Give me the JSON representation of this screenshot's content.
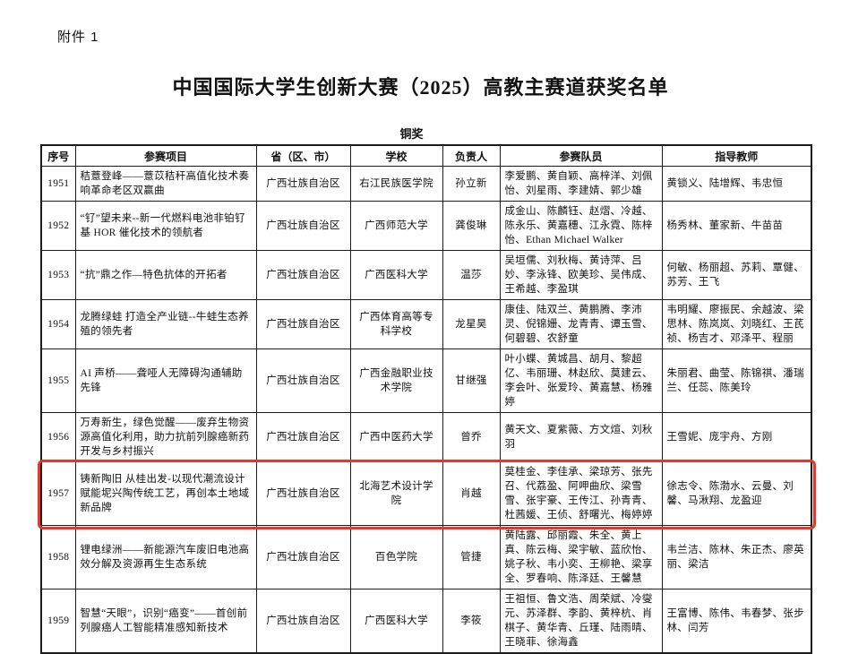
{
  "page": {
    "attachment_label": "附件 1",
    "title": "中国国际大学生创新大赛（2025）高教主赛道获奖名单",
    "award_tier": "铜奖"
  },
  "table": {
    "headers": [
      "序号",
      "参赛项目",
      "省（区、市）",
      "学校",
      "负责人",
      "参赛队员",
      "指导教师"
    ],
    "highlight_color": "#e8372a",
    "rows": [
      {
        "no": "1951",
        "project": "秸薏登峰——薏苡秸秆高值化技术奏响革命老区双赢曲",
        "province": "广西壮族自治区",
        "school": "右江民族医学院",
        "leader": "孙立新",
        "members": "李爱鹏、黄自颖、高梓洋、刘佩怡、刘星雨、李建婧、郭少雄",
        "teachers": "黄锁义、陆增辉、韦忠恒",
        "highlighted": false
      },
      {
        "no": "1952",
        "project": "“钌”望未来--新一代燃料电池非铂钌基 HOR 催化技术的领航者",
        "province": "广西壮族自治区",
        "school": "广西师范大学",
        "leader": "龚俊琳",
        "members": "成金山、陈麟钰、赵熠、冷越、陈永乐、黄嘉穗、江永霓、陈梓怡、Ethan Michael Walker",
        "teachers": "杨秀林、董家新、牛苗苗",
        "highlighted": false
      },
      {
        "no": "1953",
        "project": "“抗”鼎之作—特色抗体的开拓者",
        "province": "广西壮族自治区",
        "school": "广西医科大学",
        "leader": "温莎",
        "members": "吴垣儒、刘秋梅、黄诗萍、吕妙、李泳锋、欧美珍、吴伟成、王希越、李盈琪",
        "teachers": "何敏、杨丽超、苏莉、覃健、苏芳、王飞",
        "highlighted": false
      },
      {
        "no": "1954",
        "project": "龙腾绿蛙 打造全产业链--牛蛙生态养殖的领先者",
        "province": "广西壮族自治区",
        "school": "广西体育高等专科学校",
        "leader": "龙星昊",
        "members": "康佳、陆双兰、黄鹏腾、李沛灵、倪锦姗、龙青青、谭玉雪、何碧碧、农舒童",
        "teachers": "韦明耀、廖振民、余越波、梁思林、陈岚岚、刘晓红、王芪祯、杨吉才、邓泽平、程丽",
        "highlighted": false
      },
      {
        "no": "1955",
        "project": "AI 声桥——聋哑人无障碍沟通辅助先锋",
        "province": "广西壮族自治区",
        "school": "广西金融职业技术学院",
        "leader": "甘继强",
        "members": "叶小蝶、黄城昌、胡月、黎超亿、韦丽珊、林赵欣、莫建云、李会叶、张爱玲、黄嘉慧、杨雅婷",
        "teachers": "朱丽君、曲莹、陈锦祺、潘瑞兰、任蕊、陈美玲",
        "highlighted": false
      },
      {
        "no": "1956",
        "project": "万寿新生，绿色觉醒——废弃生物资源高值化利用，助力抗前列腺癌新药开发与乡村振兴",
        "province": "广西壮族自治区",
        "school": "广西中医药大学",
        "leader": "曾乔",
        "members": "黄天文、夏紫薇、方文煊、刘秋羽",
        "teachers": "王雪妮、庞宇舟、方刚",
        "highlighted": false
      },
      {
        "no": "1957",
        "project": "铸新陶旧 从桂出发-以现代潮流设计赋能坭兴陶传统工艺，再创本土地域新品牌",
        "province": "广西壮族自治区",
        "school": "北海艺术设计学院",
        "leader": "肖越",
        "members": "莫桂金、李佳承、梁琼芳、张先召、代荔盈、阿呷曲欣、梁雪雪、张宇豪、王传江、孙青青、杜茜媛、王侦、舒曙光、梅婷婷",
        "teachers": "徐志令、陈渤水、云曼、刘馨、马湫翔、龙盈迎",
        "highlighted": true
      },
      {
        "no": "1958",
        "project": "锂电绿洲——新能源汽车废旧电池高效分解及资源再生生态系统",
        "province": "广西壮族自治区",
        "school": "百色学院",
        "leader": "管捷",
        "members": "黄陆露、邱丽霞、朱全、黄上真、陈云梅、梁宇敏、蓝欣怡、姚子秋、韦小奕、王柳艳、梁享全、罗春响、陈泽廷、王馨慧",
        "teachers": "韦兰洁、陈林、朱正杰、廖英丽、梁洁",
        "highlighted": false
      },
      {
        "no": "1959",
        "project": "智慧“天眼”，识别“癌变”——首创前列腺癌人工智能精准感知新技术",
        "province": "广西壮族自治区",
        "school": "广西医科大学",
        "leader": "李筱",
        "members": "王祖恒、鲁文浩、周荣斌、冷燮元、苏泽群、李韵、黄梓杭、肖棋子、黄华青、丘瑾、陆雨晴、王晓菲、徐海鑫",
        "teachers": "王富博、陈伟、韦春梦、张步林、闫芳",
        "highlighted": false
      }
    ]
  }
}
